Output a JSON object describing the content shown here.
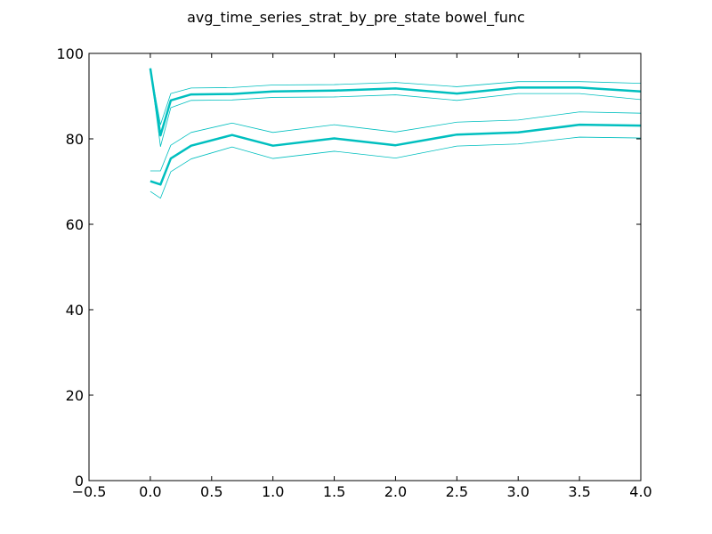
{
  "chart_data": {
    "type": "line",
    "title": "avg_time_series_strat_by_pre_state bowel_func",
    "xlabel": "",
    "ylabel": "",
    "xlim": [
      -0.5,
      4.0
    ],
    "ylim": [
      0,
      100
    ],
    "x_ticks": [
      "−0.5",
      "0.0",
      "0.5",
      "1.0",
      "1.5",
      "2.0",
      "2.5",
      "3.0",
      "3.5",
      "4.0"
    ],
    "y_ticks": [
      "0",
      "20",
      "40",
      "60",
      "80",
      "100"
    ],
    "grid": false,
    "legend": "none",
    "line_color": "#00bfbf",
    "x": [
      0.0,
      0.083,
      0.167,
      0.333,
      0.667,
      1.0,
      1.5,
      2.0,
      2.5,
      3.0,
      3.5,
      4.0
    ],
    "series": [
      {
        "role": "mean",
        "values": [
          96.5,
          80.8,
          89.0,
          90.4,
          90.5,
          91.1,
          91.3,
          91.8,
          90.6,
          92.0,
          92.0,
          91.1
        ]
      },
      {
        "role": "upper",
        "values": [
          96.5,
          83.3,
          90.6,
          91.9,
          92.0,
          92.6,
          92.7,
          93.2,
          92.2,
          93.4,
          93.4,
          93.0
        ]
      },
      {
        "role": "lower",
        "values": [
          96.5,
          78.2,
          87.3,
          89.0,
          89.1,
          89.7,
          89.8,
          90.3,
          89.0,
          90.6,
          90.6,
          89.2
        ]
      },
      {
        "role": "mean",
        "values": [
          70.1,
          69.3,
          75.4,
          78.4,
          80.9,
          78.4,
          80.1,
          78.5,
          81.0,
          81.5,
          83.3,
          83.1
        ]
      },
      {
        "role": "upper",
        "values": [
          72.5,
          72.5,
          78.5,
          81.5,
          83.7,
          81.5,
          83.3,
          81.6,
          83.9,
          84.4,
          86.3,
          86.0
        ]
      },
      {
        "role": "lower",
        "values": [
          67.7,
          66.1,
          72.3,
          75.3,
          78.1,
          75.4,
          77.1,
          75.5,
          78.3,
          78.8,
          80.4,
          80.2
        ]
      }
    ]
  }
}
